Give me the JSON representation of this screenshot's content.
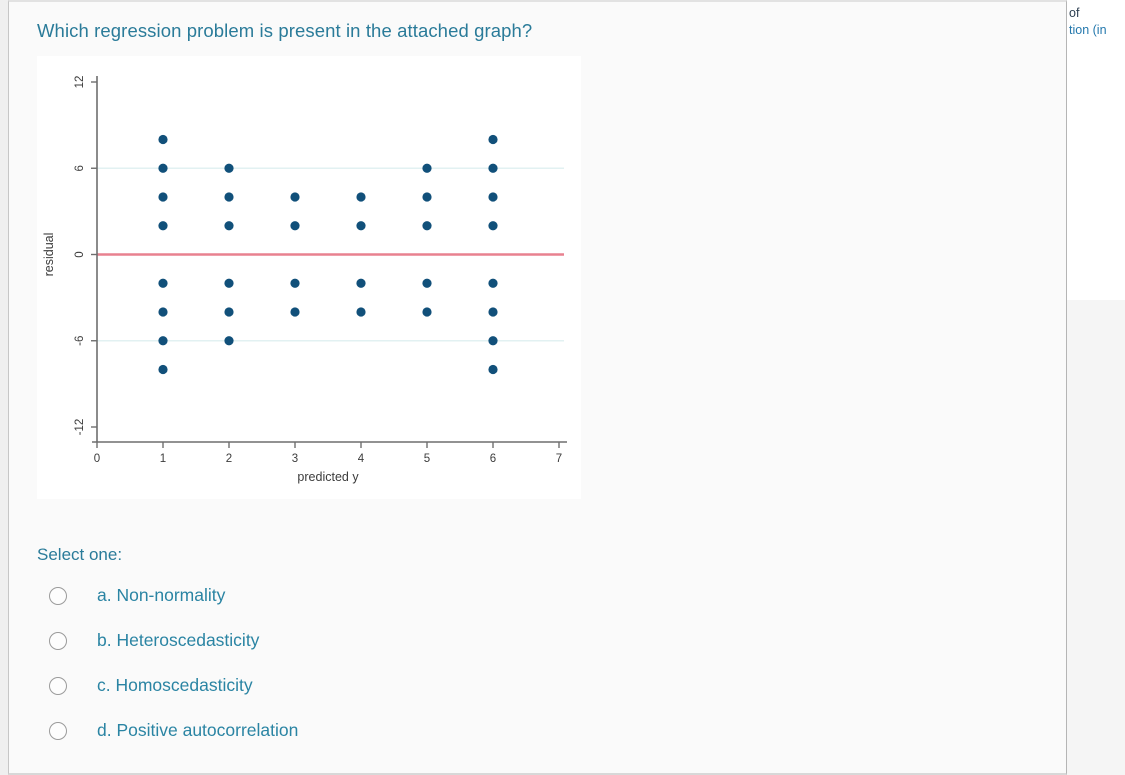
{
  "page": {
    "background": "#efefef",
    "panel_background": "#fafafa"
  },
  "question": {
    "title": "Which regression problem is present in the attached graph?",
    "title_color": "#2a7b99",
    "select_prompt": "Select one:",
    "options": [
      {
        "key": "a",
        "label": "a. Non-normality",
        "selected": false
      },
      {
        "key": "b",
        "label": "b. Heteroscedasticity",
        "selected": false
      },
      {
        "key": "c",
        "label": "c. Homoscedasticity",
        "selected": false
      },
      {
        "key": "d",
        "label": "d. Positive autocorrelation",
        "selected": false
      }
    ]
  },
  "sidebar_fragments": {
    "line1": "of",
    "line2": "tion (in"
  },
  "chart_data": {
    "type": "scatter",
    "title": "",
    "xlabel": "predicted y",
    "ylabel": "residual",
    "xlim": [
      0,
      7
    ],
    "ylim": [
      -12,
      12
    ],
    "x_ticks": [
      0,
      1,
      2,
      3,
      4,
      5,
      6,
      7
    ],
    "y_ticks": [
      12,
      6,
      0,
      -6,
      -12
    ],
    "gridlines_y": [
      6,
      -6
    ],
    "grid_on": true,
    "legend": "none",
    "reference_line": {
      "y": 0,
      "color": "#e8818f"
    },
    "dot_color": "#11507a",
    "grid_color": "#e2f1f2",
    "axis_color": "#6e6e6e",
    "tick_label_color": "#3c3c3c",
    "points": [
      [
        1,
        8
      ],
      [
        1,
        6
      ],
      [
        1,
        4
      ],
      [
        1,
        2
      ],
      [
        1,
        -2
      ],
      [
        1,
        -4
      ],
      [
        1,
        -6
      ],
      [
        1,
        -8
      ],
      [
        2,
        6
      ],
      [
        2,
        4
      ],
      [
        2,
        2
      ],
      [
        2,
        -2
      ],
      [
        2,
        -4
      ],
      [
        2,
        -6
      ],
      [
        3,
        4
      ],
      [
        3,
        2
      ],
      [
        3,
        -2
      ],
      [
        3,
        -4
      ],
      [
        4,
        4
      ],
      [
        4,
        2
      ],
      [
        4,
        -2
      ],
      [
        4,
        -4
      ],
      [
        5,
        6
      ],
      [
        5,
        4
      ],
      [
        5,
        2
      ],
      [
        5,
        -2
      ],
      [
        5,
        -4
      ],
      [
        6,
        8
      ],
      [
        6,
        6
      ],
      [
        6,
        4
      ],
      [
        6,
        2
      ],
      [
        6,
        -2
      ],
      [
        6,
        -4
      ],
      [
        6,
        -6
      ],
      [
        6,
        -8
      ]
    ]
  }
}
